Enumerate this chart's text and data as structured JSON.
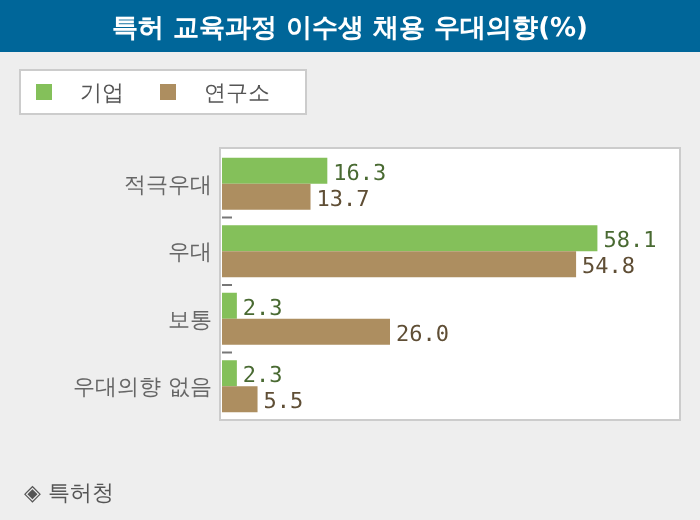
{
  "chart_data": {
    "type": "bar",
    "orientation": "horizontal",
    "title": "특허 교육과정 이수생 채용 우대의향(%)",
    "categories": [
      "적극우대",
      "우대",
      "보통",
      "우대의향 없음"
    ],
    "series": [
      {
        "name": "기업",
        "color": "#84c05a",
        "values": [
          16.3,
          58.1,
          2.3,
          2.3
        ],
        "value_labels": [
          "16.3",
          "58.1",
          "2.3",
          "2.3"
        ]
      },
      {
        "name": "연구소",
        "color": "#ad8e60",
        "values": [
          13.7,
          54.8,
          26.0,
          5.5
        ],
        "value_labels": [
          "13.7",
          "54.8",
          "26.0",
          "5.5"
        ]
      }
    ],
    "legend": "top left",
    "annotations": [
      "◈ 특허청"
    ]
  }
}
